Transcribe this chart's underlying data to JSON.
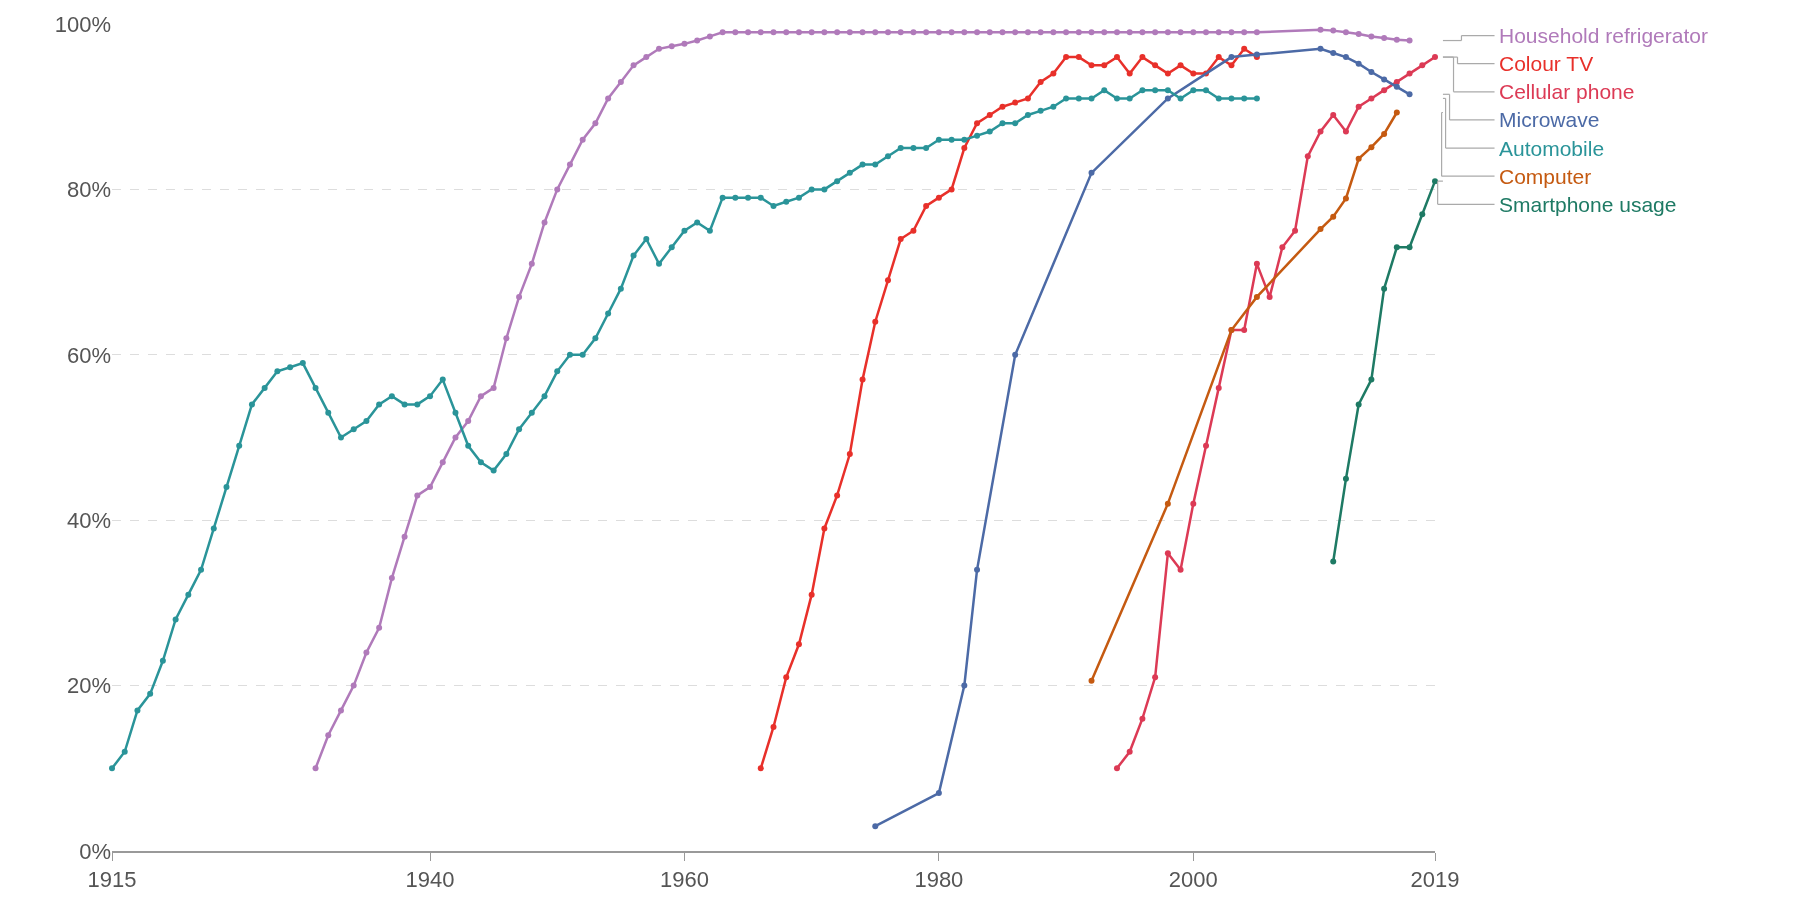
{
  "chart_data": {
    "type": "line",
    "xlim": [
      1915,
      2019
    ],
    "xticks": [
      1915,
      1940,
      1960,
      1980,
      2000,
      2019
    ],
    "ylim": [
      0,
      100
    ],
    "yticks": [
      {
        "value": 0,
        "label": "0%"
      },
      {
        "value": 20,
        "label": "20%"
      },
      {
        "value": 40,
        "label": "40%"
      },
      {
        "value": 60,
        "label": "60%"
      },
      {
        "value": 80,
        "label": "80%"
      },
      {
        "value": 100,
        "label": "100%"
      }
    ],
    "grid": "y",
    "marker": "circle",
    "line_style": "solid",
    "legend": false,
    "series": [
      {
        "name": "Household refrigerator",
        "color": "#b07aba",
        "x": [
          1931,
          1932,
          1933,
          1934,
          1935,
          1936,
          1937,
          1938,
          1939,
          1940,
          1941,
          1942,
          1943,
          1944,
          1945,
          1946,
          1947,
          1948,
          1949,
          1950,
          1951,
          1952,
          1953,
          1954,
          1955,
          1956,
          1957,
          1958,
          1959,
          1960,
          1961,
          1962,
          1963,
          1964,
          1965,
          1966,
          1967,
          1968,
          1969,
          1970,
          1971,
          1972,
          1973,
          1974,
          1975,
          1976,
          1977,
          1978,
          1979,
          1980,
          1981,
          1982,
          1983,
          1984,
          1985,
          1986,
          1987,
          1988,
          1989,
          1990,
          1991,
          1992,
          1993,
          1994,
          1995,
          1996,
          1997,
          1998,
          1999,
          2000,
          2001,
          2002,
          2003,
          2004,
          2005,
          2010,
          2011,
          2012,
          2013,
          2014,
          2015,
          2016,
          2017
        ],
        "values": [
          10,
          14,
          17,
          20,
          24,
          27,
          33,
          38,
          43,
          44,
          47,
          50,
          52,
          55,
          56,
          62,
          67,
          71,
          76,
          80,
          83,
          86,
          88,
          91,
          93,
          95,
          96,
          97,
          97.3,
          97.6,
          98,
          98.5,
          99,
          99,
          99,
          99,
          99,
          99,
          99,
          99,
          99,
          99,
          99,
          99,
          99,
          99,
          99,
          99,
          99,
          99,
          99,
          99,
          99,
          99,
          99,
          99,
          99,
          99,
          99,
          99,
          99,
          99,
          99,
          99,
          99,
          99,
          99,
          99,
          99,
          99,
          99,
          99,
          99,
          99,
          99,
          99.3,
          99.2,
          99,
          98.8,
          98.5,
          98.3,
          98.1,
          98
        ]
      },
      {
        "name": "Colour TV",
        "color": "#e8302a",
        "x": [
          1966,
          1967,
          1968,
          1969,
          1970,
          1971,
          1972,
          1973,
          1974,
          1975,
          1976,
          1977,
          1978,
          1979,
          1980,
          1981,
          1982,
          1983,
          1984,
          1985,
          1986,
          1987,
          1988,
          1989,
          1990,
          1991,
          1992,
          1993,
          1994,
          1995,
          1996,
          1997,
          1998,
          1999,
          2000,
          2001,
          2002,
          2003,
          2004,
          2005
        ],
        "values": [
          10,
          15,
          21,
          25,
          31,
          39,
          43,
          48,
          57,
          64,
          69,
          74,
          75,
          78,
          79,
          80,
          85,
          88,
          89,
          90,
          90.5,
          91,
          93,
          94,
          96,
          96,
          95,
          95,
          96,
          94,
          96,
          95,
          94,
          95,
          94,
          94,
          96,
          95,
          97,
          96
        ]
      },
      {
        "name": "Cellular phone",
        "color": "#dc3a55",
        "x": [
          1994,
          1995,
          1996,
          1997,
          1998,
          1999,
          2000,
          2001,
          2002,
          2003,
          2004,
          2005,
          2006,
          2007,
          2008,
          2009,
          2010,
          2011,
          2012,
          2013,
          2014,
          2015,
          2016,
          2017,
          2018,
          2019
        ],
        "values": [
          10,
          12,
          16,
          21,
          36,
          34,
          42,
          49,
          56,
          63,
          63,
          71,
          67,
          73,
          75,
          84,
          87,
          89,
          87,
          90,
          91,
          92,
          93,
          94,
          95,
          96
        ]
      },
      {
        "name": "Microwave",
        "color": "#4c6aa6",
        "x": [
          1975,
          1980,
          1982,
          1983,
          1986,
          1992,
          1998,
          2003,
          2005,
          2010,
          2011,
          2012,
          2013,
          2014,
          2015,
          2016,
          2017
        ],
        "values": [
          3,
          7,
          20,
          34,
          60,
          82,
          91,
          96,
          96.3,
          97,
          96.5,
          96,
          95.2,
          94.2,
          93.3,
          92.4,
          91.5
        ]
      },
      {
        "name": "Automobile",
        "color": "#2a9499",
        "x": [
          1915,
          1916,
          1917,
          1918,
          1919,
          1920,
          1921,
          1922,
          1923,
          1924,
          1925,
          1926,
          1927,
          1928,
          1929,
          1930,
          1931,
          1932,
          1933,
          1934,
          1935,
          1936,
          1937,
          1938,
          1939,
          1940,
          1941,
          1942,
          1943,
          1944,
          1945,
          1946,
          1947,
          1948,
          1949,
          1950,
          1951,
          1952,
          1953,
          1954,
          1955,
          1956,
          1957,
          1958,
          1959,
          1960,
          1961,
          1962,
          1963,
          1964,
          1965,
          1966,
          1967,
          1968,
          1969,
          1970,
          1971,
          1972,
          1973,
          1974,
          1975,
          1976,
          1977,
          1978,
          1979,
          1980,
          1981,
          1982,
          1983,
          1984,
          1985,
          1986,
          1987,
          1988,
          1989,
          1990,
          1991,
          1992,
          1993,
          1994,
          1995,
          1996,
          1997,
          1998,
          1999,
          2000,
          2001,
          2002,
          2003,
          2004,
          2005
        ],
        "values": [
          10,
          12,
          17,
          19,
          23,
          28,
          31,
          34,
          39,
          44,
          49,
          54,
          56,
          58,
          58.5,
          59,
          56,
          53,
          50,
          51,
          52,
          54,
          55,
          54,
          54,
          55,
          57,
          53,
          49,
          47,
          46,
          48,
          51,
          53,
          55,
          58,
          60,
          60,
          62,
          65,
          68,
          72,
          74,
          71,
          73,
          75,
          76,
          75,
          79,
          79,
          79,
          79,
          78,
          78.5,
          79,
          80,
          80,
          81,
          82,
          83,
          83,
          84,
          85,
          85,
          85,
          86,
          86,
          86,
          86.5,
          87,
          88,
          88,
          89,
          89.5,
          90,
          91,
          91,
          91,
          92,
          91,
          91,
          92,
          92,
          92,
          91,
          92,
          92,
          91,
          91,
          91,
          91
        ]
      },
      {
        "name": "Computer",
        "color": "#c55a11",
        "x": [
          1992,
          1998,
          2003,
          2005,
          2010,
          2011,
          2012,
          2013,
          2014,
          2015,
          2016
        ],
        "values": [
          20.6,
          42,
          63,
          67,
          75.2,
          76.7,
          78.9,
          83.7,
          85.1,
          86.7,
          89.3
        ]
      },
      {
        "name": "Smartphone usage",
        "color": "#1e7a64",
        "x": [
          2011,
          2012,
          2013,
          2014,
          2015,
          2016,
          2017,
          2018,
          2019
        ],
        "values": [
          35,
          45,
          54,
          57,
          68,
          73,
          73,
          77,
          81
        ]
      }
    ]
  }
}
